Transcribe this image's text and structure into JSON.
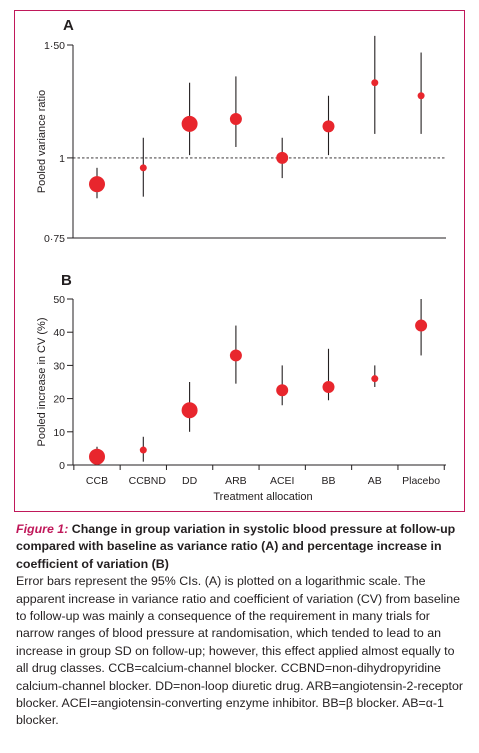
{
  "chart_data": [
    {
      "type": "scatter",
      "panel_label": "A",
      "ylabel": "Pooled variance ratio",
      "yscale": "log",
      "ylim": [
        0.75,
        1.5
      ],
      "yticks": [
        "0·75",
        "1",
        "1·50"
      ],
      "ytick_values": [
        0.75,
        1,
        1.5
      ],
      "reference_line": 1,
      "categories": [
        "CCB",
        "CCBND",
        "DD",
        "ARB",
        "ACEI",
        "BB",
        "AB",
        "Placebo"
      ],
      "points": [
        {
          "category": "CCB",
          "value": 0.91,
          "ci_low": 0.865,
          "ci_high": 0.965,
          "marker": "large"
        },
        {
          "category": "CCBND",
          "value": 0.965,
          "ci_low": 0.87,
          "ci_high": 1.075,
          "marker": "small"
        },
        {
          "category": "DD",
          "value": 1.13,
          "ci_low": 1.01,
          "ci_high": 1.31,
          "marker": "large"
        },
        {
          "category": "ARB",
          "value": 1.15,
          "ci_low": 1.04,
          "ci_high": 1.34,
          "marker": "medium"
        },
        {
          "category": "ACEI",
          "value": 1.0,
          "ci_low": 0.93,
          "ci_high": 1.075,
          "marker": "medium"
        },
        {
          "category": "BB",
          "value": 1.12,
          "ci_low": 1.01,
          "ci_high": 1.25,
          "marker": "medium"
        },
        {
          "category": "AB",
          "value": 1.31,
          "ci_low": 1.09,
          "ci_high": 1.55,
          "marker": "small"
        },
        {
          "category": "Placebo",
          "value": 1.25,
          "ci_low": 1.09,
          "ci_high": 1.46,
          "marker": "small"
        }
      ]
    },
    {
      "type": "scatter",
      "panel_label": "B",
      "ylabel": "Pooled increase in CV (%)",
      "xlabel": "Treatment allocation",
      "ylim": [
        0,
        50
      ],
      "yticks": [
        "0",
        "10",
        "20",
        "30",
        "40",
        "50"
      ],
      "ytick_values": [
        0,
        10,
        20,
        30,
        40,
        50
      ],
      "categories": [
        "CCB",
        "CCBND",
        "DD",
        "ARB",
        "ACEI",
        "BB",
        "AB",
        "Placebo"
      ],
      "points": [
        {
          "category": "CCB",
          "value": 2.5,
          "ci_low": 0.5,
          "ci_high": 5.5,
          "marker": "large"
        },
        {
          "category": "CCBND",
          "value": 4.5,
          "ci_low": 1.0,
          "ci_high": 8.5,
          "marker": "small"
        },
        {
          "category": "DD",
          "value": 16.5,
          "ci_low": 10.0,
          "ci_high": 25.0,
          "marker": "large"
        },
        {
          "category": "ARB",
          "value": 33.0,
          "ci_low": 24.5,
          "ci_high": 42.0,
          "marker": "medium"
        },
        {
          "category": "ACEI",
          "value": 22.5,
          "ci_low": 18.0,
          "ci_high": 30.0,
          "marker": "medium"
        },
        {
          "category": "BB",
          "value": 23.5,
          "ci_low": 19.5,
          "ci_high": 35.0,
          "marker": "medium"
        },
        {
          "category": "AB",
          "value": 26.0,
          "ci_low": 23.5,
          "ci_high": 30.0,
          "marker": "small"
        },
        {
          "category": "Placebo",
          "value": 42.0,
          "ci_low": 33.0,
          "ci_high": 50.0,
          "marker": "medium"
        }
      ]
    }
  ],
  "colors": {
    "marker": "#e8262d",
    "frame": "#c0185a",
    "axis": "#231f20",
    "caption_label": "#c0185a"
  },
  "caption": {
    "label": "Figure 1:",
    "title": " Change in group variation in systolic blood pressure at follow-up compared with baseline as variance ratio (A) and percentage increase in coefficient of variation (B)",
    "body": "Error bars represent the 95% CIs. (A) is plotted on a logarithmic scale. The apparent increase in variance ratio and coefficient of variation (CV) from baseline to follow-up was mainly a consequence of the requirement in many trials for narrow ranges of blood pressure at randomisation, which tended to lead to an increase in group SD on follow-up; however, this effect applied almost equally to all drug classes. CCB=calcium-channel blocker. CCBND=non-dihydropyridine calcium-channel blocker. DD=non-loop diuretic drug. ARB=angiotensin-2-receptor blocker. ACEI=angiotensin-converting enzyme inhibitor. BB=β blocker. AB=α-1 blocker."
  }
}
